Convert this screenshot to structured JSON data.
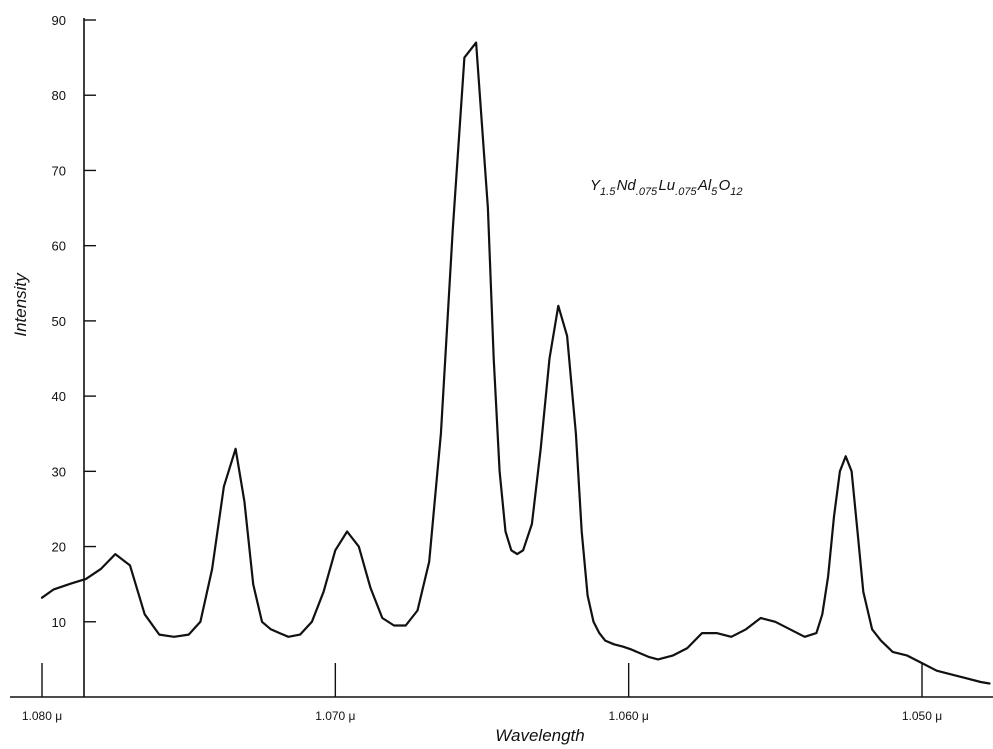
{
  "chart_data": {
    "type": "line",
    "title": "",
    "xlabel": "Wavelength",
    "ylabel": "Intensity",
    "x_unit_label": "μ",
    "xlim": [
      1.0815,
      1.0477
    ],
    "ylim": [
      0,
      90
    ],
    "x_reversed": true,
    "x_ticks": [
      {
        "value": 1.08,
        "label": "1.080"
      },
      {
        "value": 1.07,
        "label": "1.070"
      },
      {
        "value": 1.06,
        "label": "1.060"
      },
      {
        "value": 1.05,
        "label": "1.050"
      }
    ],
    "y_ticks": [
      10,
      20,
      30,
      40,
      50,
      60,
      70,
      80,
      90
    ],
    "grid": false,
    "annotation": {
      "parts": [
        {
          "text": "Y",
          "sub": false
        },
        {
          "text": "1.5",
          "sub": true
        },
        {
          "text": "Nd",
          "sub": false
        },
        {
          "text": ".075",
          "sub": true
        },
        {
          "text": "Lu",
          "sub": false
        },
        {
          "text": ".075",
          "sub": true
        },
        {
          "text": "Al",
          "sub": false
        },
        {
          "text": "5",
          "sub": true
        },
        {
          "text": "O",
          "sub": false
        },
        {
          "text": "12",
          "sub": true
        }
      ]
    },
    "series": [
      {
        "color": "#111111",
        "x": [
          1.08,
          1.0796,
          1.079,
          1.0785,
          1.078,
          1.0775,
          1.077,
          1.0765,
          1.076,
          1.0755,
          1.075,
          1.0746,
          1.0742,
          1.0738,
          1.0734,
          1.0731,
          1.0728,
          1.0725,
          1.0722,
          1.0719,
          1.0716,
          1.0712,
          1.0708,
          1.0704,
          1.07,
          1.0696,
          1.0692,
          1.0688,
          1.0684,
          1.068,
          1.0676,
          1.0672,
          1.0668,
          1.0664,
          1.066,
          1.0656,
          1.0652,
          1.0648,
          1.0646,
          1.0644,
          1.0642,
          1.064,
          1.0638,
          1.0636,
          1.0633,
          1.063,
          1.0627,
          1.0624,
          1.0621,
          1.0618,
          1.0616,
          1.0614,
          1.0612,
          1.061,
          1.0608,
          1.0605,
          1.0602,
          1.0599,
          1.0596,
          1.0593,
          1.059,
          1.0585,
          1.058,
          1.0575,
          1.057,
          1.0565,
          1.056,
          1.0555,
          1.055,
          1.0545,
          1.054,
          1.0536,
          1.0534,
          1.0532,
          1.053,
          1.0528,
          1.0526,
          1.0524,
          1.0522,
          1.052,
          1.0517,
          1.0514,
          1.051,
          1.0505,
          1.05,
          1.0495,
          1.049,
          1.0485,
          1.048,
          1.0477
        ],
        "y": [
          13.2,
          14.3,
          15.1,
          15.7,
          17.0,
          19.0,
          17.5,
          11.0,
          8.3,
          8.0,
          8.3,
          10.0,
          17.0,
          28.0,
          33.0,
          26.0,
          15.0,
          10.0,
          9.0,
          8.5,
          8.0,
          8.3,
          10.0,
          14.0,
          19.5,
          22.0,
          20.0,
          14.5,
          10.5,
          9.5,
          9.5,
          11.5,
          18.0,
          35.0,
          62.0,
          85.0,
          87.0,
          65.0,
          45.0,
          30.0,
          22.0,
          19.5,
          19.0,
          19.5,
          23.0,
          33.0,
          45.0,
          52.0,
          48.0,
          35.0,
          22.0,
          13.5,
          10.0,
          8.5,
          7.5,
          7.0,
          6.7,
          6.3,
          5.8,
          5.3,
          5.0,
          5.5,
          6.5,
          8.5,
          8.5,
          8.0,
          9.0,
          10.5,
          10.0,
          9.0,
          8.0,
          8.5,
          11.0,
          16.0,
          24.0,
          30.0,
          32.0,
          30.0,
          22.0,
          14.0,
          9.0,
          7.5,
          6.0,
          5.5,
          4.5,
          3.5,
          3.0,
          2.5,
          2.0,
          1.8
        ]
      }
    ]
  }
}
